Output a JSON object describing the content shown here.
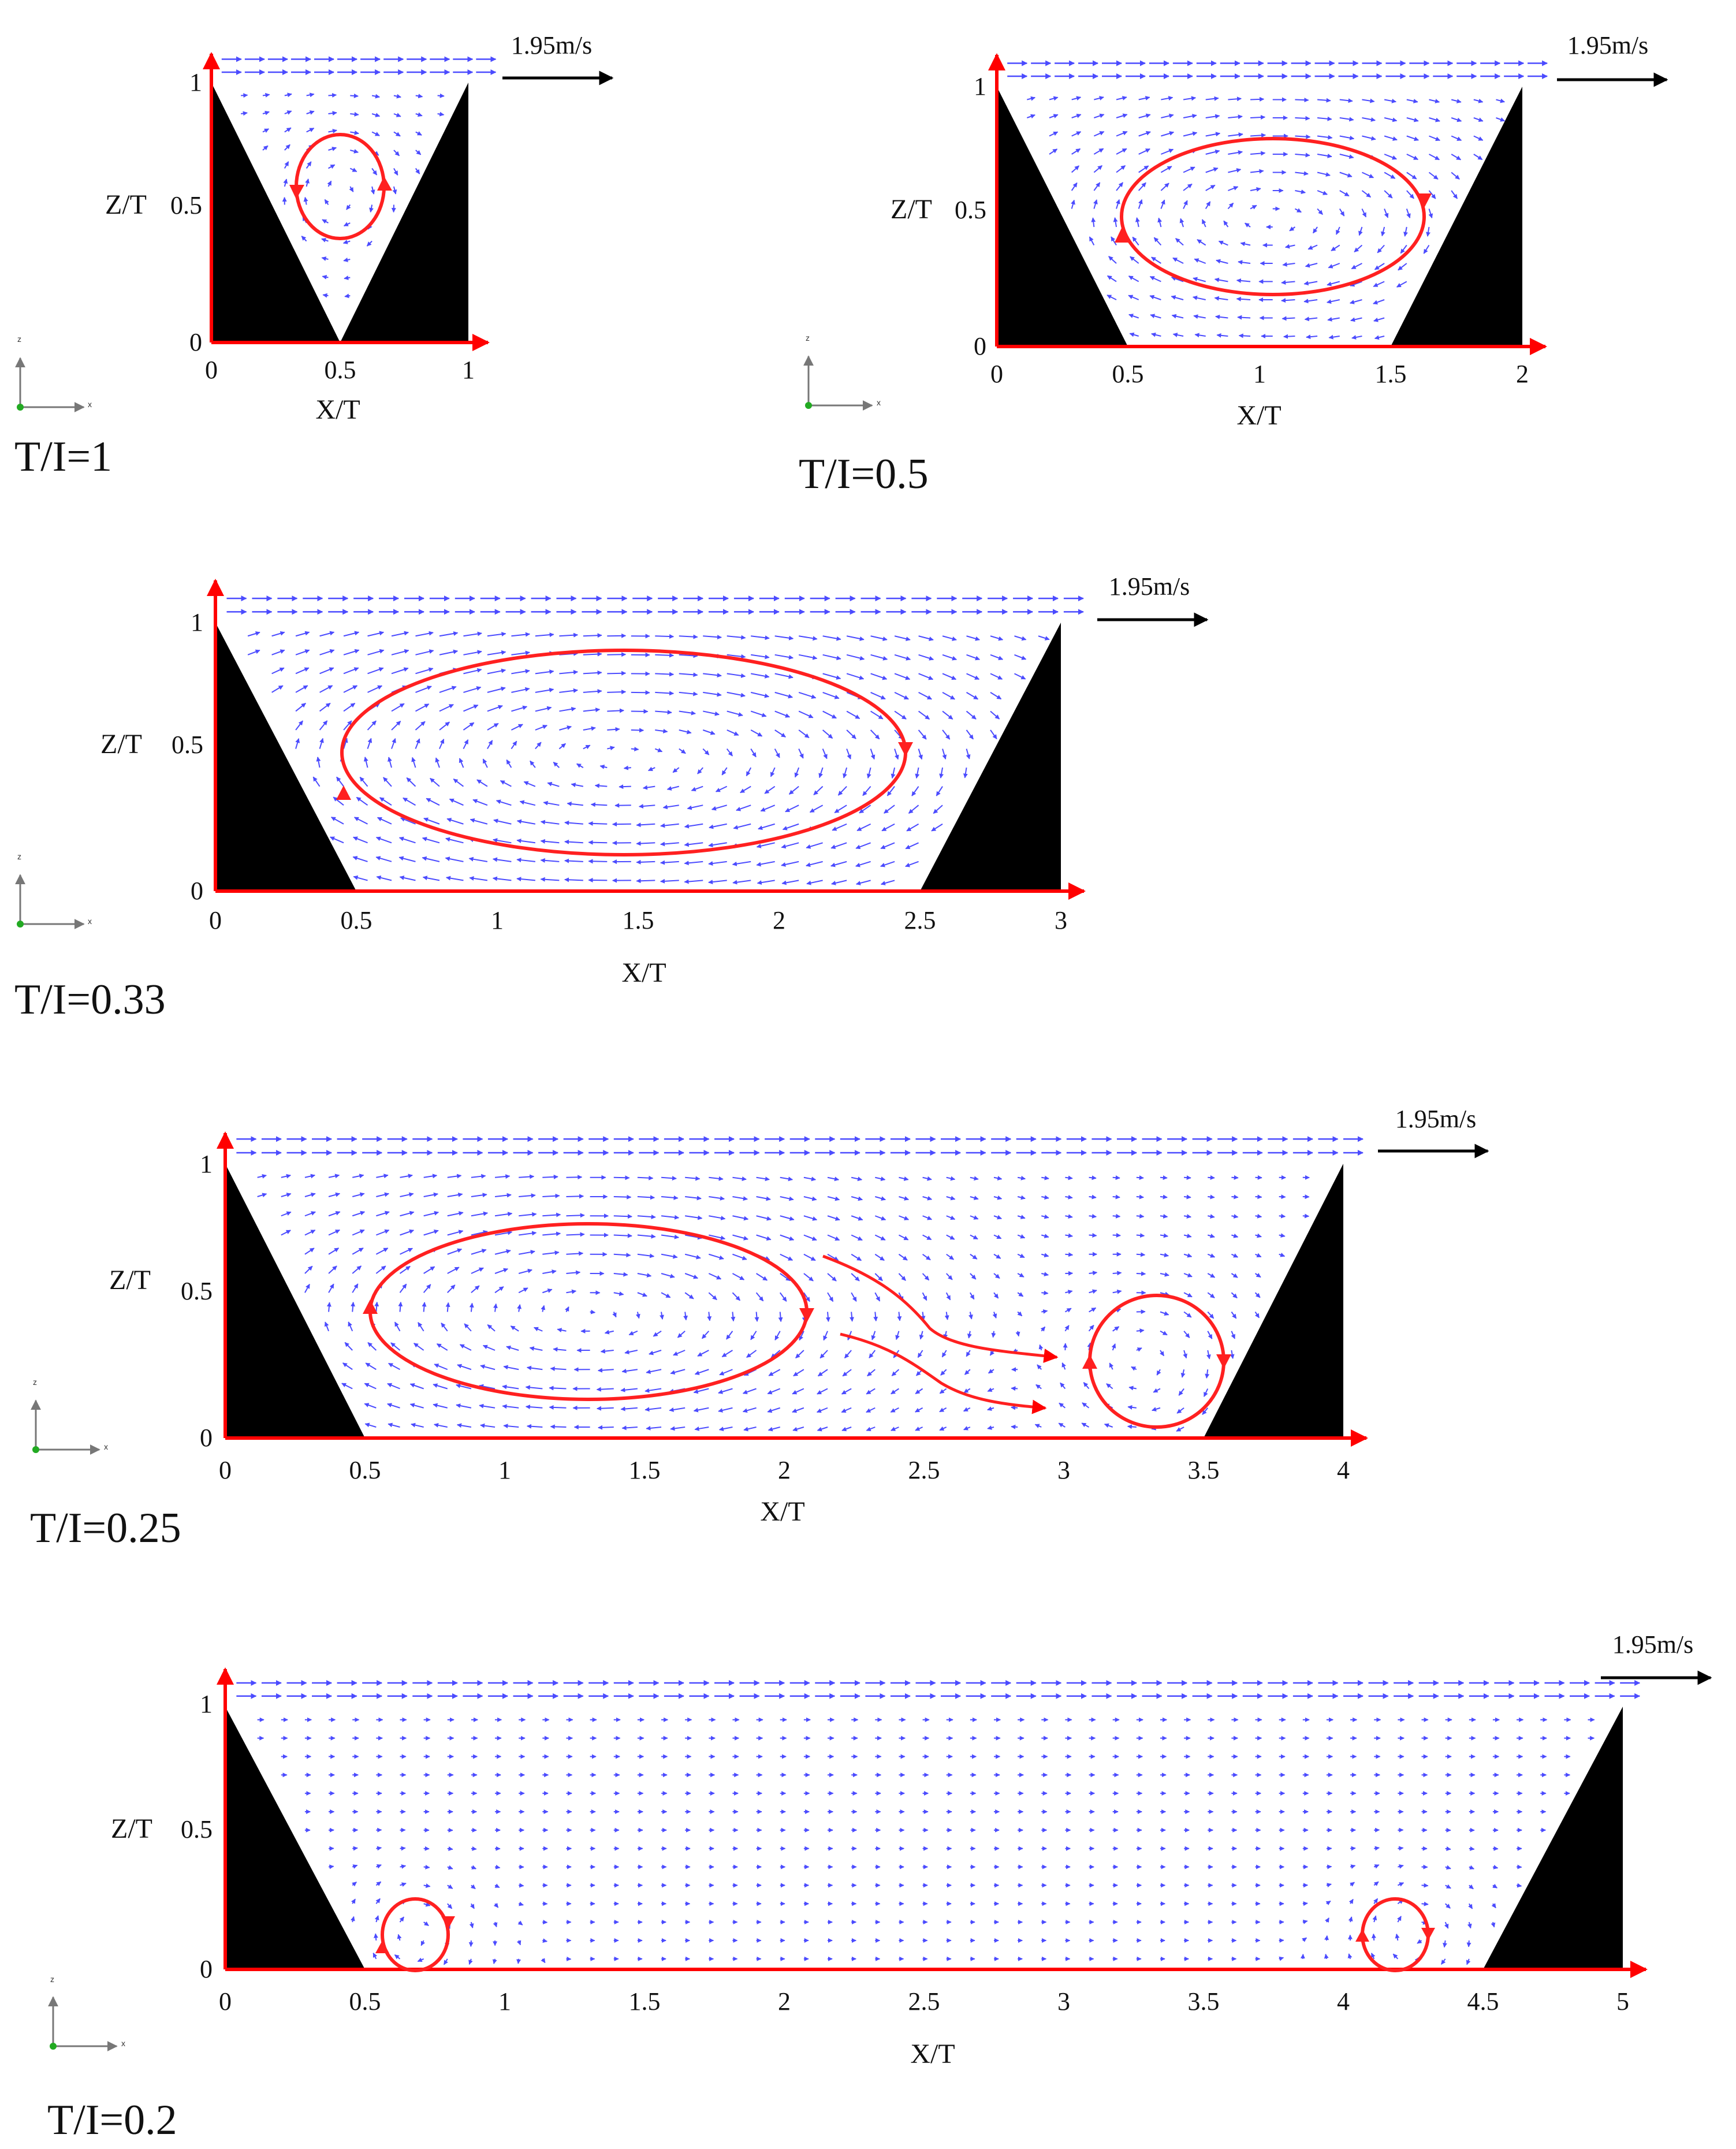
{
  "colors": {
    "vector": "#4b4bff",
    "axis": "#ff0000",
    "vortex": "#ff2020",
    "wall": "#000000",
    "text": "#111111"
  },
  "axis_labels": {
    "x": "X/T",
    "z": "Z/T",
    "triad_x": "x",
    "triad_z": "z"
  },
  "velocity_scale": {
    "label": "1.95m/s",
    "value_m_per_s": 1.95
  },
  "panels": [
    {
      "id": "p1",
      "ratio_label": "T/I=1",
      "x_ticks": [
        "0",
        "0.5",
        "1"
      ],
      "z_ticks": [
        "0",
        "0.5",
        "1"
      ],
      "x_range": [
        0,
        1
      ],
      "z_range": [
        0,
        1
      ],
      "trench_bottom": [
        0.5,
        0.5
      ],
      "vortices": [
        {
          "x": 0.5,
          "z": 0.6,
          "rx": 0.17,
          "rz": 0.2
        }
      ]
    },
    {
      "id": "p2",
      "ratio_label": "T/I=0.5",
      "x_ticks": [
        "0",
        "0.5",
        "1",
        "1.5",
        "2"
      ],
      "z_ticks": [
        "0",
        "0.5",
        "1"
      ],
      "x_range": [
        0,
        2
      ],
      "z_range": [
        0,
        1
      ],
      "trench_bottom": [
        0.5,
        1.5
      ],
      "vortices": [
        {
          "x": 1.05,
          "z": 0.5,
          "rx": 0.58,
          "rz": 0.3
        }
      ]
    },
    {
      "id": "p3",
      "ratio_label": "T/I=0.33",
      "x_ticks": [
        "0",
        "0.5",
        "1",
        "1.5",
        "2",
        "2.5",
        "3"
      ],
      "z_ticks": [
        "0",
        "0.5",
        "1"
      ],
      "x_range": [
        0,
        3
      ],
      "z_range": [
        0,
        1
      ],
      "trench_bottom": [
        0.5,
        2.5
      ],
      "vortices": [
        {
          "x": 1.45,
          "z": 0.5,
          "rx": 1.0,
          "rz": 0.38
        }
      ]
    },
    {
      "id": "p4",
      "ratio_label": "T/I=0.25",
      "x_ticks": [
        "0",
        "0.5",
        "1",
        "1.5",
        "2",
        "2.5",
        "3",
        "3.5",
        "4"
      ],
      "z_ticks": [
        "0",
        "0.5",
        "1"
      ],
      "x_range": [
        0,
        4
      ],
      "z_range": [
        0,
        1
      ],
      "trench_bottom": [
        0.5,
        3.5
      ],
      "vortices": [
        {
          "x": 1.3,
          "z": 0.46,
          "rx": 0.78,
          "rz": 0.32
        },
        {
          "x": 3.3,
          "z": 0.28,
          "rx": 0.24,
          "rz": 0.24
        }
      ]
    },
    {
      "id": "p5",
      "ratio_label": "T/I=0.2",
      "x_ticks": [
        "0",
        "0.5",
        "1",
        "1.5",
        "2",
        "2.5",
        "3",
        "3.5",
        "4",
        "4.5",
        "5"
      ],
      "z_ticks": [
        "0",
        "0.5",
        "1"
      ],
      "x_range": [
        0,
        5
      ],
      "z_range": [
        0,
        1
      ],
      "trench_bottom": [
        0.5,
        4.5
      ],
      "vortices": [
        {
          "x": 0.68,
          "z": 0.13,
          "rx": 0.12,
          "rz": 0.14
        },
        {
          "x": 4.27,
          "z": 0.13,
          "rx": 0.12,
          "rz": 0.14
        }
      ]
    }
  ]
}
